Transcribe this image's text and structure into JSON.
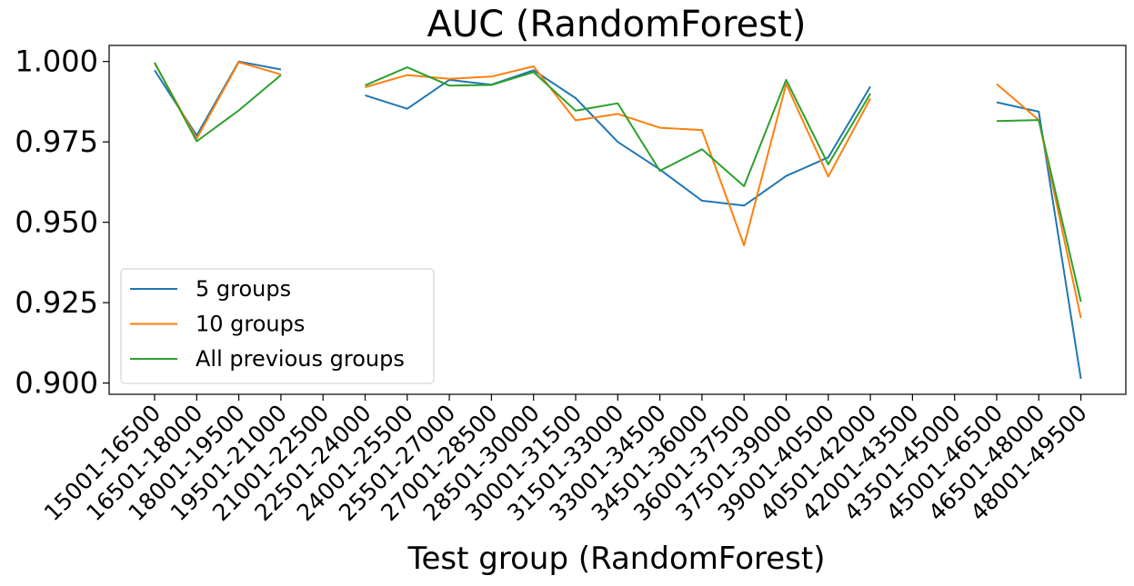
{
  "chart_data": {
    "type": "line",
    "title": "AUC (RandomForest)",
    "xlabel": "Test group (RandomForest)",
    "ylabel": "",
    "categories": [
      "15001-16500",
      "16501-18000",
      "18001-19500",
      "19501-21000",
      "21001-22500",
      "22501-24000",
      "24001-25500",
      "25501-27000",
      "27001-28500",
      "28501-30000",
      "30001-31500",
      "31501-33000",
      "33001-34500",
      "34501-36000",
      "36001-37500",
      "37501-39000",
      "39001-40500",
      "40501-42000",
      "42001-43500",
      "43501-45000",
      "45001-46500",
      "46501-48000",
      "48001-49500"
    ],
    "ylim": [
      0.8965,
      1.005
    ],
    "yticks": [
      0.9,
      0.925,
      0.95,
      0.975,
      1.0
    ],
    "ytick_labels": [
      "0.900",
      "0.925",
      "0.950",
      "0.975",
      "1.000"
    ],
    "grid": false,
    "legend_position": "lower-left",
    "series": [
      {
        "name": "5 groups",
        "color": "#1f77b4",
        "values": [
          0.9973,
          0.977,
          1.0,
          0.9975,
          null,
          0.9895,
          0.9853,
          0.9943,
          0.9928,
          0.9973,
          0.9886,
          0.975,
          0.9664,
          0.9567,
          0.9552,
          0.9644,
          0.9702,
          0.9922,
          null,
          null,
          0.9873,
          0.9844,
          0.9013
        ]
      },
      {
        "name": "10 groups",
        "color": "#ff7f0e",
        "values": [
          0.9995,
          0.976,
          0.9998,
          0.996,
          null,
          0.992,
          0.9958,
          0.9946,
          0.9953,
          0.9985,
          0.9817,
          0.9837,
          0.9794,
          0.9787,
          0.9428,
          0.993,
          0.9642,
          0.9885,
          null,
          null,
          0.993,
          0.9818,
          0.9202
        ]
      },
      {
        "name": "All previous groups",
        "color": "#2ca02c",
        "values": [
          0.9997,
          0.9752,
          0.9848,
          0.9958,
          null,
          0.9926,
          0.9982,
          0.9925,
          0.9927,
          0.9967,
          0.9847,
          0.987,
          0.966,
          0.9727,
          0.9612,
          0.9943,
          0.968,
          0.99,
          null,
          null,
          0.9815,
          0.9818,
          0.9253
        ]
      }
    ]
  }
}
